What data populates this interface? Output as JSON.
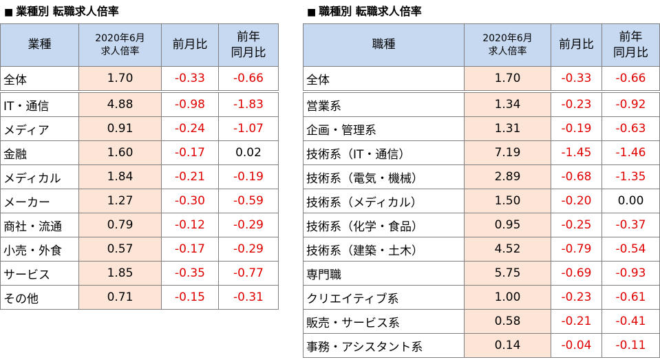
{
  "left": {
    "title": "業種別 転職求人倍率",
    "headers": {
      "name": "業種",
      "rate_line1": "2020年6月",
      "rate_line2": "求人倍率",
      "mom": "前月比",
      "yoy_line1": "前年",
      "yoy_line2": "同月比"
    },
    "rows": [
      {
        "name": "全体",
        "rate": "1.70",
        "mom": "-0.33",
        "yoy": "-0.66"
      },
      {
        "name": "IT・通信",
        "rate": "4.88",
        "mom": "-0.98",
        "yoy": "-1.83"
      },
      {
        "name": "メディア",
        "rate": "0.91",
        "mom": "-0.24",
        "yoy": "-1.07"
      },
      {
        "name": "金融",
        "rate": "1.60",
        "mom": "-0.17",
        "yoy": "0.02"
      },
      {
        "name": "メディカル",
        "rate": "1.84",
        "mom": "-0.21",
        "yoy": "-0.19"
      },
      {
        "name": "メーカー",
        "rate": "1.27",
        "mom": "-0.30",
        "yoy": "-0.59"
      },
      {
        "name": "商社・流通",
        "rate": "0.79",
        "mom": "-0.12",
        "yoy": "-0.29"
      },
      {
        "name": "小売・外食",
        "rate": "0.57",
        "mom": "-0.17",
        "yoy": "-0.29"
      },
      {
        "name": "サービス",
        "rate": "1.85",
        "mom": "-0.35",
        "yoy": "-0.77"
      },
      {
        "name": "その他",
        "rate": "0.71",
        "mom": "-0.15",
        "yoy": "-0.31"
      }
    ]
  },
  "right": {
    "title": "職種別 転職求人倍率",
    "headers": {
      "name": "職種",
      "rate_line1": "2020年6月",
      "rate_line2": "求人倍率",
      "mom": "前月比",
      "yoy_line1": "前年",
      "yoy_line2": "同月比"
    },
    "rows": [
      {
        "name": "全体",
        "rate": "1.70",
        "mom": "-0.33",
        "yoy": "-0.66"
      },
      {
        "name": "営業系",
        "rate": "1.34",
        "mom": "-0.23",
        "yoy": "-0.92"
      },
      {
        "name": "企画・管理系",
        "rate": "1.31",
        "mom": "-0.19",
        "yoy": "-0.63"
      },
      {
        "name": "技術系（IT・通信）",
        "rate": "7.19",
        "mom": "-1.45",
        "yoy": "-1.46"
      },
      {
        "name": "技術系（電気・機械）",
        "rate": "2.89",
        "mom": "-0.68",
        "yoy": "-1.35"
      },
      {
        "name": "技術系（メディカル）",
        "rate": "1.50",
        "mom": "-0.20",
        "yoy": "0.00"
      },
      {
        "name": "技術系（化学・食品）",
        "rate": "0.95",
        "mom": "-0.25",
        "yoy": "-0.37"
      },
      {
        "name": "技術系（建築・土木）",
        "rate": "4.52",
        "mom": "-0.79",
        "yoy": "-0.54"
      },
      {
        "name": "専門職",
        "rate": "5.75",
        "mom": "-0.69",
        "yoy": "-0.93"
      },
      {
        "name": "クリエイティブ系",
        "rate": "1.00",
        "mom": "-0.23",
        "yoy": "-0.61"
      },
      {
        "name": "販売・サービス系",
        "rate": "0.58",
        "mom": "-0.21",
        "yoy": "-0.41"
      },
      {
        "name": "事務・アシスタント系",
        "rate": "0.14",
        "mom": "-0.04",
        "yoy": "-0.11"
      }
    ]
  },
  "colors": {
    "header_bg": "#c6d9f1",
    "rate_bg": "#fce4d6",
    "negative": "#e00000",
    "non_negative": "#000000",
    "border": "#7f7f7f"
  }
}
